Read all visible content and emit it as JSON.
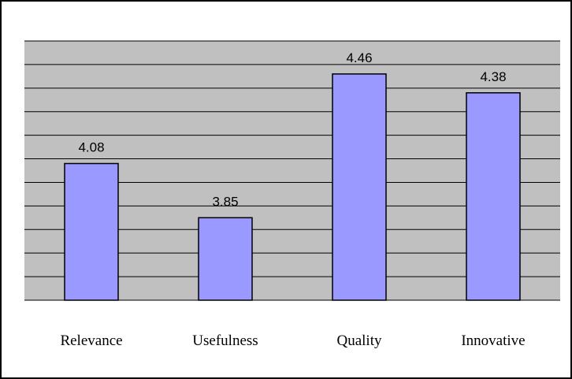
{
  "chart_data": {
    "type": "bar",
    "categories": [
      "Relevance",
      "Usefulness",
      "Quality",
      "Innovative"
    ],
    "values": [
      4.08,
      3.85,
      4.46,
      4.38
    ],
    "data_labels": [
      "4.08",
      "3.85",
      "4.46",
      "4.38"
    ],
    "title": "",
    "xlabel": "",
    "ylabel": "",
    "ylim": [
      3.5,
      4.6
    ],
    "grid": true,
    "legend": "none",
    "colors": {
      "plot_background": "#c0c0c0",
      "bar_fill": "#9999ff",
      "bar_stroke": "#000000",
      "gridline": "#000000"
    }
  }
}
